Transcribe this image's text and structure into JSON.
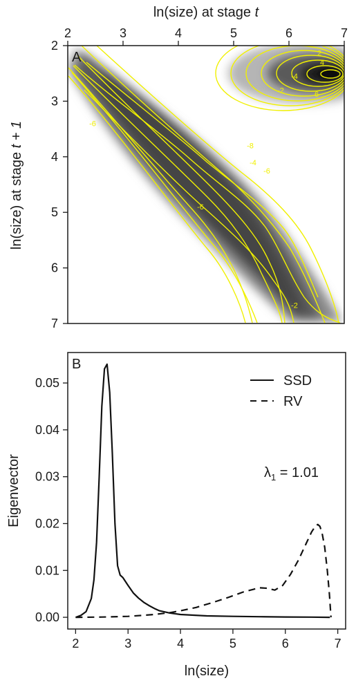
{
  "chart_data": [
    {
      "panel": "A",
      "type": "heatmap",
      "panel_label": "A",
      "xlabel": "ln(size) at stage",
      "xlabel_var": "t",
      "ylabel": "ln(size) at stage",
      "ylabel_var": "t + 1",
      "xlim": [
        2,
        7
      ],
      "ylim": [
        2,
        7
      ],
      "y_reversed": true,
      "x_axis_position": "top",
      "xticks": [
        2,
        3,
        4,
        5,
        6,
        7
      ],
      "yticks": [
        2,
        3,
        4,
        5,
        6,
        7
      ],
      "xtick_labels": [
        "2",
        "3",
        "4",
        "5",
        "6",
        "7"
      ],
      "ytick_labels": [
        "2",
        "3",
        "4",
        "5",
        "6",
        "7"
      ],
      "colormap": "white-to-black",
      "contour_color": "#f0f000",
      "contour_levels": [
        -8,
        -6,
        -4,
        -2,
        2,
        4,
        6
      ],
      "contour_labels": [
        {
          "text": "-8",
          "x": 5.3,
          "y": 3.85
        },
        {
          "text": "-4",
          "x": 5.35,
          "y": 4.15
        },
        {
          "text": "-6",
          "x": 5.6,
          "y": 4.3
        },
        {
          "text": "-6",
          "x": 2.45,
          "y": 3.45
        },
        {
          "text": "-6",
          "x": 4.4,
          "y": 4.95
        },
        {
          "text": "-2",
          "x": 6.1,
          "y": 6.72
        },
        {
          "text": "-4",
          "x": 6.1,
          "y": 2.6
        },
        {
          "text": "-2",
          "x": 5.85,
          "y": 2.85
        },
        {
          "text": "6",
          "x": 6.5,
          "y": 2.92
        },
        {
          "text": "4",
          "x": 6.6,
          "y": 2.35
        },
        {
          "text": "2",
          "x": 6.55,
          "y": 2.18
        }
      ]
    },
    {
      "panel": "B",
      "type": "line",
      "panel_label": "B",
      "xlabel": "ln(size)",
      "ylabel": "Eigenvector",
      "xlim": [
        1.85,
        7.15
      ],
      "ylim": [
        -0.0025,
        0.0565
      ],
      "xticks": [
        2,
        3,
        4,
        5,
        6,
        7
      ],
      "yticks": [
        0.0,
        0.01,
        0.02,
        0.03,
        0.04,
        0.05
      ],
      "xtick_labels": [
        "2",
        "3",
        "4",
        "5",
        "6",
        "7"
      ],
      "ytick_labels": [
        "0.00",
        "0.01",
        "0.02",
        "0.03",
        "0.04",
        "0.05"
      ],
      "legend_position": "top-right",
      "annotation": {
        "symbol": "λ",
        "subscript": "1",
        "text": " = 1.01"
      },
      "series": [
        {
          "name": "SSD",
          "style": "solid",
          "x": [
            2.0,
            2.1,
            2.2,
            2.3,
            2.35,
            2.4,
            2.45,
            2.5,
            2.55,
            2.6,
            2.65,
            2.7,
            2.75,
            2.8,
            2.85,
            2.9,
            3.0,
            3.1,
            3.2,
            3.3,
            3.4,
            3.5,
            3.6,
            3.8,
            4.0,
            4.5,
            5.0,
            5.5,
            6.0,
            6.5,
            6.85
          ],
          "y": [
            0.0,
            0.0004,
            0.0012,
            0.004,
            0.008,
            0.016,
            0.03,
            0.045,
            0.053,
            0.054,
            0.048,
            0.035,
            0.02,
            0.011,
            0.009,
            0.0085,
            0.0068,
            0.0052,
            0.0041,
            0.0032,
            0.0025,
            0.0019,
            0.0014,
            0.0009,
            0.0006,
            0.0003,
            0.0002,
            0.00012,
            7e-05,
            3e-05,
            0.0
          ]
        },
        {
          "name": "RV",
          "style": "dashed",
          "x": [
            2.0,
            2.5,
            3.0,
            3.5,
            3.8,
            4.0,
            4.3,
            4.6,
            4.9,
            5.2,
            5.4,
            5.5,
            5.65,
            5.8,
            5.95,
            6.1,
            6.25,
            6.4,
            6.5,
            6.58,
            6.62,
            6.66,
            6.7,
            6.75,
            6.8,
            6.84,
            6.87
          ],
          "y": [
            0.0,
            5e-05,
            0.0002,
            0.0006,
            0.001,
            0.0014,
            0.0021,
            0.0031,
            0.0042,
            0.0054,
            0.006,
            0.0063,
            0.0062,
            0.0058,
            0.0068,
            0.0092,
            0.0122,
            0.0158,
            0.0182,
            0.0196,
            0.0198,
            0.0194,
            0.018,
            0.015,
            0.01,
            0.005,
            0.0
          ]
        }
      ]
    }
  ]
}
